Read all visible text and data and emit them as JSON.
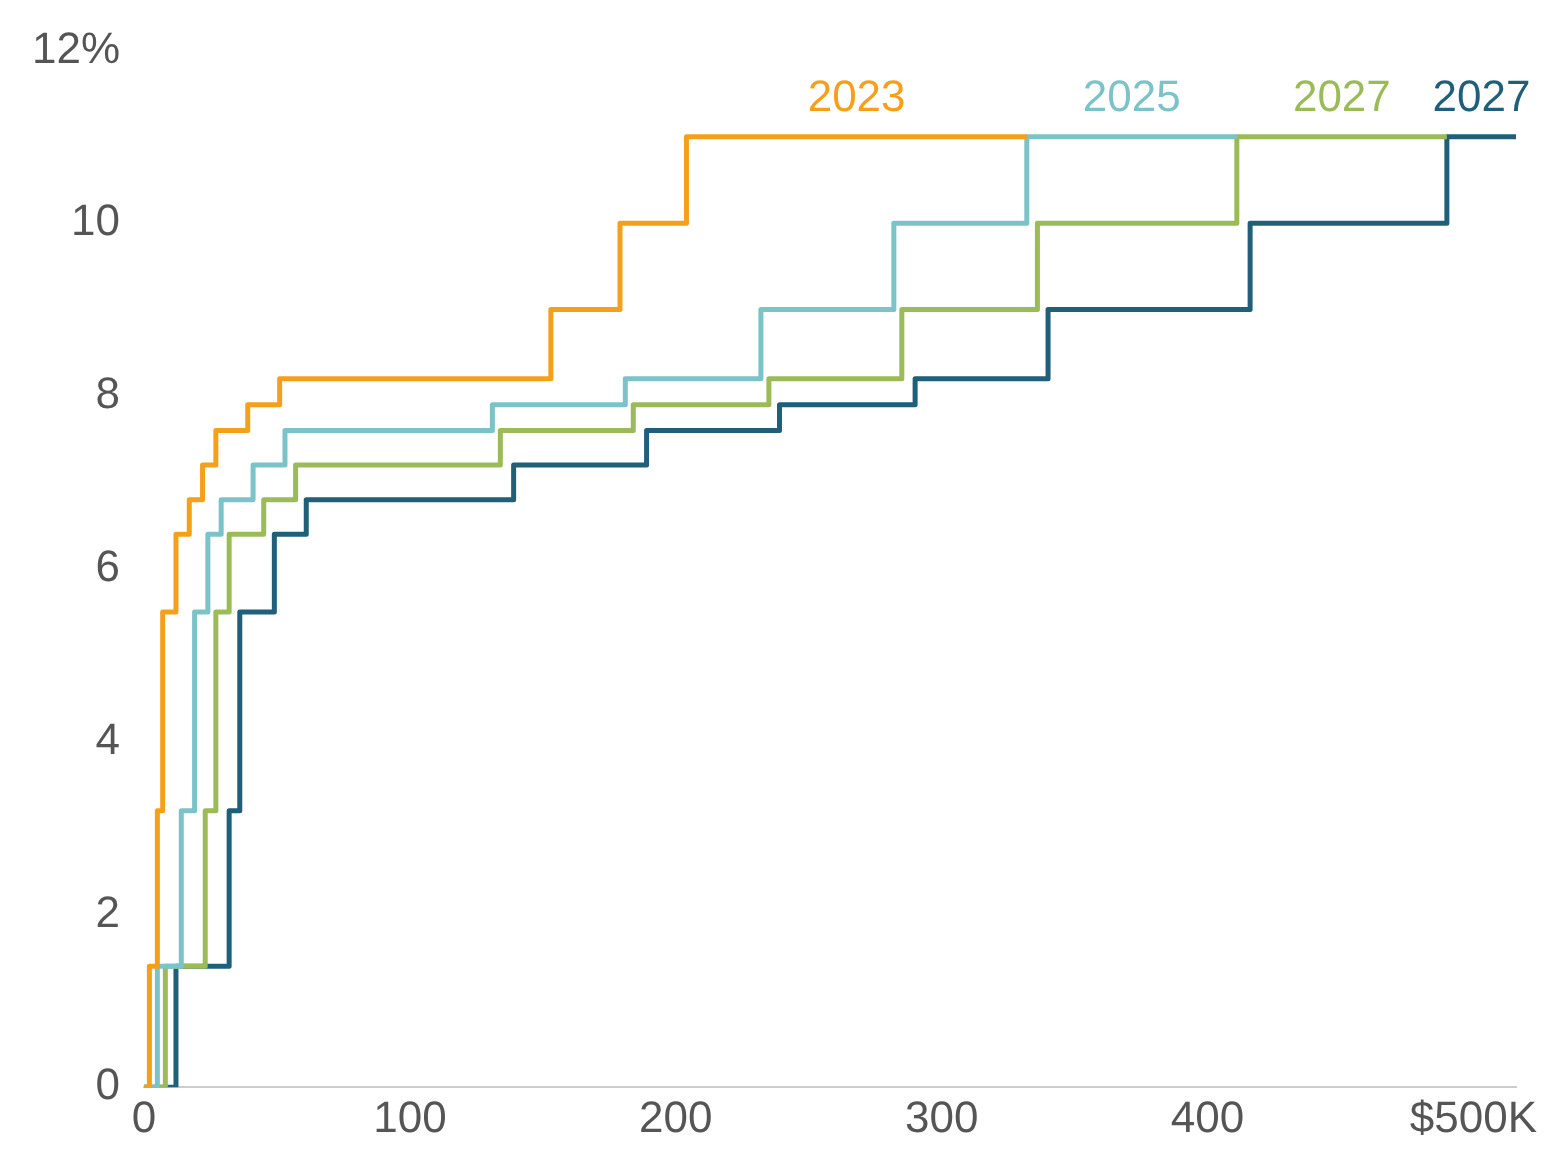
{
  "chart_data": {
    "type": "step",
    "xlim": [
      0,
      516
    ],
    "ylim": [
      0,
      12
    ],
    "xticks": [
      0,
      100,
      200,
      300,
      400,
      {
        "value": 500,
        "label": "$500K"
      }
    ],
    "yticks": [
      0,
      2,
      4,
      6,
      8,
      10,
      {
        "value": 12,
        "label": "12%"
      }
    ],
    "grid": false,
    "legend": false,
    "marker": "none",
    "series": [
      {
        "name": "2023",
        "color": "#f5a01a",
        "x": [
          0,
          2,
          5,
          7,
          12,
          17,
          22,
          27,
          39,
          51,
          153,
          179,
          204,
          332
        ],
        "values": [
          0,
          1.4,
          3.2,
          5.5,
          6.4,
          6.8,
          7.2,
          7.6,
          7.9,
          8.2,
          9,
          10,
          11,
          11
        ]
      },
      {
        "name": "2025",
        "color": "#7cc3c9",
        "x": [
          0,
          5,
          14,
          19,
          24,
          29,
          41,
          53,
          131,
          181,
          232,
          282,
          332,
          411
        ],
        "values": [
          0,
          1.4,
          3.2,
          5.5,
          6.4,
          6.8,
          7.2,
          7.6,
          7.9,
          8.2,
          9,
          10,
          11,
          11
        ]
      },
      {
        "name": "2027",
        "color": "#9bbb59",
        "x": [
          0,
          8,
          23,
          27,
          32,
          45,
          57,
          134,
          184,
          235,
          285,
          336,
          411,
          490
        ],
        "values": [
          0,
          1.4,
          3.2,
          5.5,
          6.4,
          6.8,
          7.2,
          7.6,
          7.9,
          8.2,
          9,
          10,
          11,
          11
        ]
      },
      {
        "name": "2027",
        "color": "#1f5f7a",
        "x": [
          0,
          12,
          32,
          36,
          49,
          61,
          139,
          189,
          239,
          290,
          340,
          416,
          490,
          516
        ],
        "values": [
          0,
          1.4,
          3.2,
          5.5,
          6.4,
          6.8,
          7.2,
          7.6,
          7.9,
          8.2,
          9,
          10,
          11,
          11
        ]
      }
    ]
  }
}
